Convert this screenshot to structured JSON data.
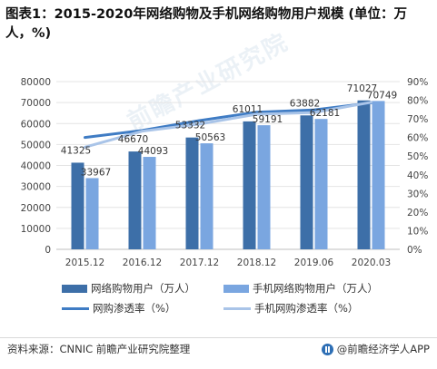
{
  "title": "图表1：2015-2020年网络购物及手机网络购物用户规模 (单位：万人，%)",
  "watermark": "前瞻产业研究院",
  "chart_data": {
    "type": "bar",
    "categories": [
      "2015.12",
      "2016.12",
      "2017.12",
      "2018.12",
      "2019.06",
      "2020.03"
    ],
    "series": [
      {
        "name": "网络购物用户（万人）",
        "kind": "bar",
        "axis": "left",
        "color": "#3d6fa8",
        "values": [
          41325,
          46670,
          53332,
          61011,
          63882,
          71027
        ]
      },
      {
        "name": "手机网络购物用户（万人）",
        "kind": "bar",
        "axis": "left",
        "color": "#7aa6e0",
        "values": [
          33967,
          44093,
          50563,
          59191,
          62181,
          70749
        ]
      },
      {
        "name": "网购渗透率（%）",
        "kind": "line",
        "axis": "right",
        "color": "#3f7cc4",
        "values": [
          60.0,
          63.8,
          69.1,
          73.6,
          74.8,
          78.6
        ]
      },
      {
        "name": "手机网购渗透率（%）",
        "kind": "line",
        "axis": "right",
        "color": "#a9c4e8",
        "values": [
          54.8,
          63.4,
          67.2,
          72.5,
          73.4,
          78.9
        ]
      }
    ],
    "left_axis": {
      "min": 0,
      "max": 80000,
      "ticks": [
        "0",
        "10000",
        "20000",
        "30000",
        "40000",
        "50000",
        "60000",
        "70000",
        "80000"
      ]
    },
    "right_axis": {
      "min": 0,
      "max": 90,
      "ticks": [
        "0%",
        "10%",
        "20%",
        "30%",
        "40%",
        "50%",
        "60%",
        "70%",
        "80%",
        "90%"
      ]
    },
    "grid": true,
    "legend_position": "bottom"
  },
  "legend": {
    "bar1": "网络购物用户（万人）",
    "bar2": "手机网络购物用户（万人）",
    "line1": "网购渗透率（%）",
    "line2": "手机网购渗透率（%）"
  },
  "footer": {
    "source": "资料来源：CNNIC 前瞻产业研究院整理",
    "brand": "@前瞻经济学人APP"
  },
  "colors": {
    "bar1": "#3d6fa8",
    "bar2": "#7aa6e0",
    "line1": "#3f7cc4",
    "line2": "#a9c4e8"
  }
}
